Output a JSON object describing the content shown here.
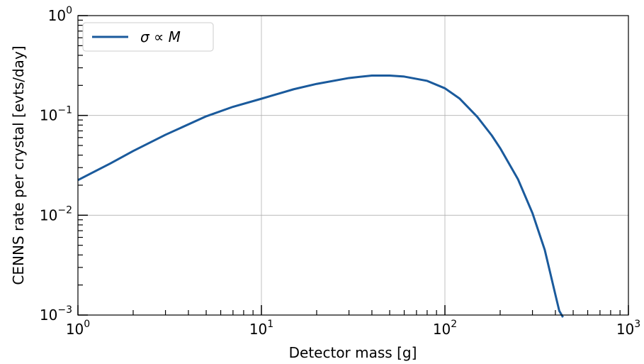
{
  "chart_data": {
    "type": "line",
    "title": "",
    "xlabel": "Detector mass [g]",
    "ylabel": "CENNS rate per crystal [evts/day]",
    "x_scale": "log",
    "y_scale": "log",
    "xlim": [
      1,
      1000
    ],
    "ylim": [
      0.001,
      1
    ],
    "x_ticks": [
      {
        "value": 1,
        "base": "10",
        "exp": "0"
      },
      {
        "value": 10,
        "base": "10",
        "exp": "1"
      },
      {
        "value": 100,
        "base": "10",
        "exp": "2"
      },
      {
        "value": 1000,
        "base": "10",
        "exp": "3"
      }
    ],
    "y_ticks": [
      {
        "value": 0.001,
        "base": "10",
        "exp": "−3"
      },
      {
        "value": 0.01,
        "base": "10",
        "exp": "−2"
      },
      {
        "value": 0.1,
        "base": "10",
        "exp": "−1"
      },
      {
        "value": 1,
        "base": "10",
        "exp": "0"
      }
    ],
    "grid": true,
    "legend_position": "top-left",
    "series": [
      {
        "name": "σ ∝ M",
        "color": "#1a5a9c",
        "x": [
          1,
          1.5,
          2,
          3,
          5,
          7,
          10,
          15,
          20,
          30,
          40,
          50,
          60,
          80,
          100,
          120,
          150,
          180,
          200,
          250,
          300,
          350,
          400,
          420,
          440
        ],
        "y": [
          0.0225,
          0.033,
          0.044,
          0.064,
          0.098,
          0.122,
          0.147,
          0.183,
          0.207,
          0.237,
          0.251,
          0.251,
          0.245,
          0.222,
          0.187,
          0.148,
          0.097,
          0.063,
          0.047,
          0.023,
          0.0105,
          0.0045,
          0.0016,
          0.0011,
          0.00095
        ]
      }
    ]
  }
}
